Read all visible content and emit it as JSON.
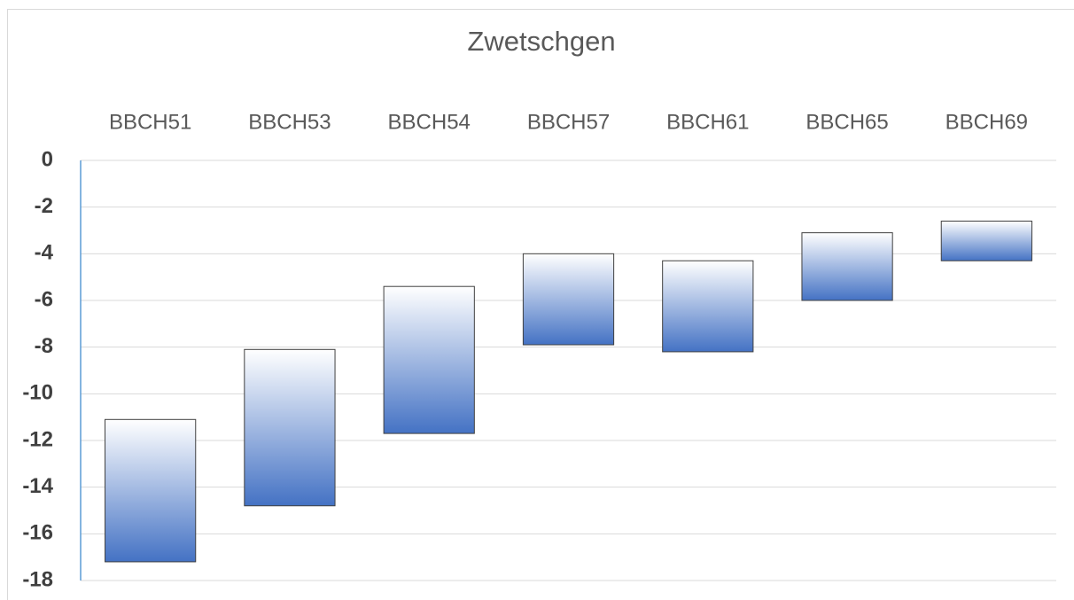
{
  "chart_data": {
    "type": "floating_bar",
    "title": "Zwetschgen",
    "categories": [
      "BBCH51",
      "BBCH53",
      "BBCH54",
      "BBCH57",
      "BBCH61",
      "BBCH65",
      "BBCH69"
    ],
    "highs": [
      -11.1,
      -8.1,
      -5.4,
      -4.0,
      -4.3,
      -3.1,
      -2.6
    ],
    "lows": [
      -17.2,
      -14.8,
      -11.7,
      -7.9,
      -8.2,
      -6.0,
      -4.3
    ],
    "color": "#4472c4",
    "ylim": [
      -18,
      0
    ],
    "yticks": [
      0,
      -2,
      -4,
      -6,
      -8,
      -10,
      -12,
      -14,
      -16,
      -18
    ],
    "grid": true
  }
}
